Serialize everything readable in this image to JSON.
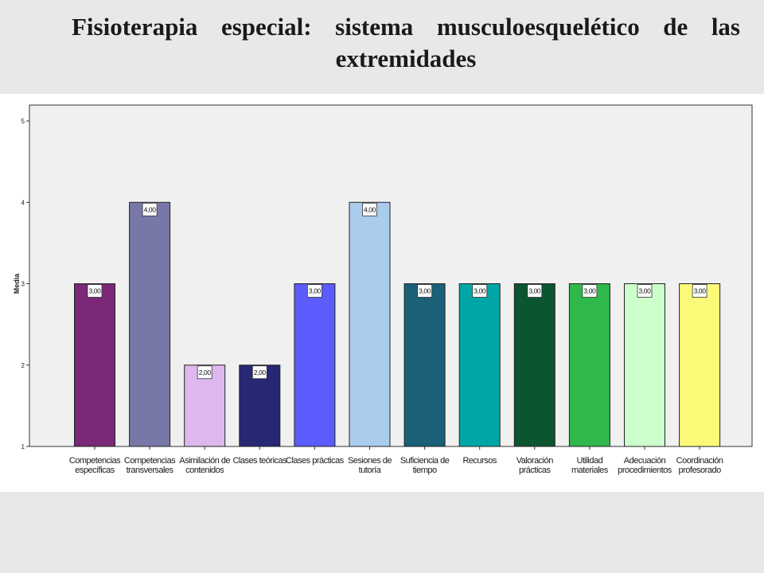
{
  "slide": {
    "title": "Fisioterapia especial: sistema musculoesquelético de las extremidades"
  },
  "colors": {
    "background": "#e8e8e8",
    "plot_background": "#f0f0f0"
  },
  "chart_data": {
    "type": "bar",
    "title": "",
    "xlabel": "",
    "ylabel": "Media",
    "ylim": [
      1,
      5
    ],
    "yticks": [
      "1",
      "2",
      "3",
      "4",
      "5"
    ],
    "grid": false,
    "categories": [
      [
        "Competencias",
        "específicas"
      ],
      [
        "Competencias",
        "transversales"
      ],
      [
        "Asimilación de",
        "contenidos"
      ],
      [
        "Clases teóricas"
      ],
      [
        "Clases prácticas"
      ],
      [
        "Sesiones de",
        "tutoría"
      ],
      [
        "Suficiencia de",
        "tiempo"
      ],
      [
        "Recursos"
      ],
      [
        "Valoración",
        "prácticas"
      ],
      [
        "Utilidad",
        "materiales"
      ],
      [
        "Adecuación",
        "procedimientos"
      ],
      [
        "Coordinación",
        "profesorado"
      ]
    ],
    "values": [
      3,
      4,
      2,
      2,
      3,
      4,
      3,
      3,
      3,
      3,
      3,
      3
    ],
    "value_labels": [
      "3,00",
      "4,00",
      "2,00",
      "2,00",
      "3,00",
      "4,00",
      "3,00",
      "3,00",
      "3,00",
      "3,00",
      "3,00",
      "3,00"
    ],
    "colors": [
      "#7a2877",
      "#7878a8",
      "#dcb8ee",
      "#272873",
      "#5c5cfc",
      "#aacdee",
      "#1a6078",
      "#00a6a6",
      "#0b5530",
      "#2fb84b",
      "#ccffcc",
      "#fafa78"
    ]
  }
}
